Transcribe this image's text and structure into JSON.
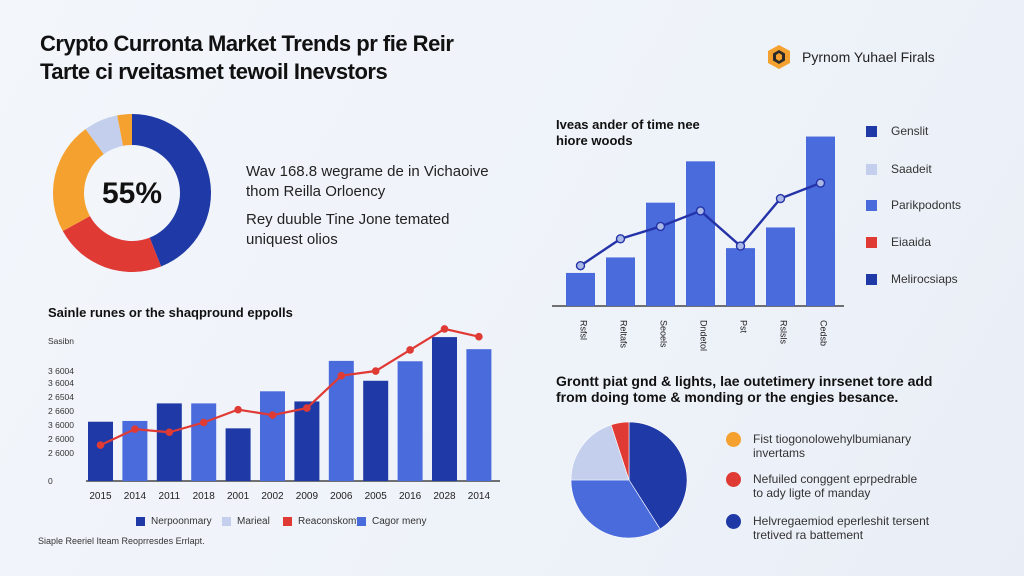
{
  "header": {
    "title_line1": "Crypto Curronta Market Trends pr fie Reir",
    "title_line2": "Tarte ci rveitasmet tewoil Inevstors",
    "brand_name": "Pyrnom Yuhael Firals"
  },
  "donut": {
    "center_label": "55%",
    "text1_line1": "Wav 168.8 wegrame de in Vichaoive",
    "text1_line2": "thom Reilla Orloency",
    "text2_line1": "Rey duuble Tine Jone temated",
    "text2_line2": "uniquest olios"
  },
  "bar_line_section": {
    "title": "Sainle runes or the shaqpround eppolls",
    "legend": [
      "Nerpoonmary",
      "Marieal",
      "Reaconskomy",
      "Cagor meny"
    ],
    "footer": "Siaple Reeriel Iteam Reoprresdes Errlapt."
  },
  "right_bar_section": {
    "title_line1": "Iveas ander of time nee",
    "title_line2": "hiore woods",
    "legend": [
      "Genslit",
      "Saadeit",
      "Parikpodonts",
      "Eiaaida",
      "Melirocsiaps"
    ]
  },
  "pie_section": {
    "title_line1": "Grontt piat gnd & lights, lae outetimery inrsenet tore add",
    "title_line2": "from doing tome & monding or the engies besance.",
    "legend": [
      {
        "line1": "Fist tiogonolowehylbumianary",
        "line2": "invertams"
      },
      {
        "line1": "Nefuiled conggent eprpedrable",
        "line2": "to ady ligte of manday"
      },
      {
        "line1": "Helvregaemiod eperleshit tersent",
        "line2": "tretived ra battement"
      }
    ]
  },
  "colors": {
    "navy": "#1f3aa6",
    "blue": "#4a6bdc",
    "light_blue": "#c3cfec",
    "red": "#e03a35",
    "orange": "#f5a130",
    "lavender": "#a9b8e6"
  },
  "chart_data": [
    {
      "type": "pie",
      "title": "",
      "values": [
        44,
        23,
        23,
        7,
        3
      ],
      "colors": [
        "#1f3aa6",
        "#e03a35",
        "#f5a130",
        "#c3cfec",
        "#f5a130"
      ],
      "center_label": "55%"
    },
    {
      "type": "bar",
      "title": "Sainle runes or the shaqpround eppolls",
      "categories": [
        "2015",
        "2014",
        "2011",
        "2018",
        "2001",
        "2002",
        "2009",
        "2006",
        "2005",
        "2016",
        "2028",
        "2014"
      ],
      "ytick_labels": [
        "Sasibn",
        "3 6004",
        "3 6004",
        "2 6504",
        "2 6600",
        "3 6000",
        "2 6000",
        "2 6000",
        "0"
      ],
      "series": [
        {
          "name": "Nerpoonmary",
          "type": "bar",
          "values": [
            1520,
            1540,
            1990,
            1990,
            1350,
            2300,
            2040,
            3080,
            2570,
            3070,
            3690,
            3380
          ]
        },
        {
          "name": "Reaconskomy",
          "type": "line",
          "values": [
            920,
            1330,
            1250,
            1500,
            1830,
            1690,
            1870,
            2700,
            2820,
            3360,
            3900,
            3700
          ]
        }
      ],
      "ylim": [
        0,
        4000
      ],
      "legend": [
        "Nerpoonmary",
        "Marieal",
        "Reaconskomy",
        "Cagor meny"
      ]
    },
    {
      "type": "bar",
      "title": "Iveas ander of time nee hiore woods",
      "categories": [
        "Rsfsl",
        "Reltafs",
        "Seoels",
        "Dndetol",
        "Pst",
        "Rslsls",
        "Cedsb"
      ],
      "series": [
        {
          "name": "bars",
          "type": "bar",
          "values": [
            32,
            47,
            100,
            140,
            56,
            76,
            164
          ]
        },
        {
          "name": "line",
          "type": "line",
          "values": [
            39,
            65,
            77,
            92,
            58,
            104,
            119
          ]
        }
      ],
      "ylim": [
        0,
        180
      ],
      "legend": [
        "Genslit",
        "Saadeit",
        "Parikpodonts",
        "Eiaaida",
        "Melirocsiaps"
      ]
    },
    {
      "type": "pie",
      "title": "Grontt piat gnd & lights, lae outetimery inrsenet tore add from doing tome & monding or the engies besance.",
      "values": [
        41,
        34,
        20,
        5
      ],
      "colors": [
        "#1f3aa6",
        "#4a6bdc",
        "#c3cfec",
        "#e03a35"
      ]
    }
  ]
}
